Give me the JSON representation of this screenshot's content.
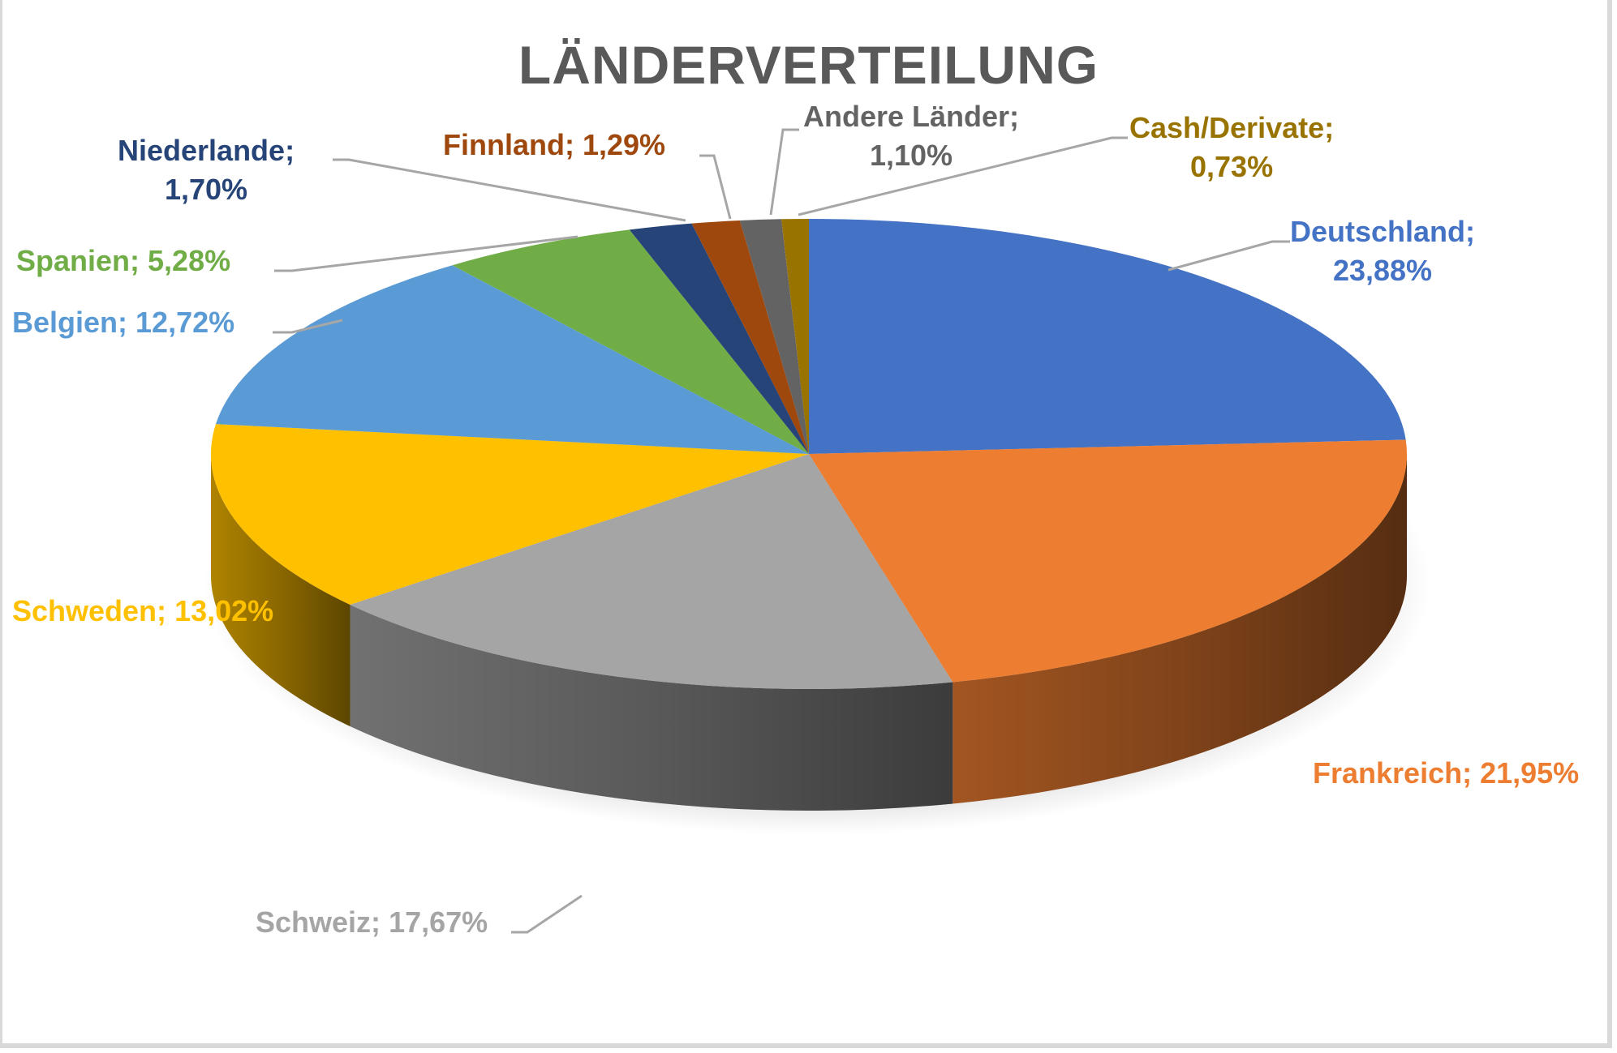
{
  "chart_data": {
    "type": "pie",
    "style": "3d",
    "title": "LÄNDERVERTEILUNG",
    "categories": [
      "Deutschland",
      "Frankreich",
      "Schweiz",
      "Schweden",
      "Belgien",
      "Spanien",
      "Niederlande",
      "Finnland",
      "Andere Länder",
      "Cash/Derivate"
    ],
    "values": [
      23.88,
      21.95,
      17.67,
      13.02,
      12.72,
      5.28,
      1.7,
      1.29,
      1.1,
      0.73
    ],
    "colors": [
      "#4472c4",
      "#ed7d31",
      "#a5a5a5",
      "#ffc000",
      "#5b9bd5",
      "#70ad47",
      "#264478",
      "#9e480e",
      "#636363",
      "#997300"
    ],
    "labels": [
      {
        "name": "Deutschland;",
        "value": "23,88%"
      },
      {
        "name": "Frankreich;",
        "value": "21,95%"
      },
      {
        "name": "Schweiz;",
        "value": "17,67%"
      },
      {
        "name": "Schweden;",
        "value": "13,02%"
      },
      {
        "name": "Belgien;",
        "value": "12,72%"
      },
      {
        "name": "Spanien;",
        "value": "5,28%"
      },
      {
        "name": "Niederlande;",
        "value": "1,70%"
      },
      {
        "name": "Finnland;",
        "value": "1,29%"
      },
      {
        "name": "Andere Länder;",
        "value": "1,10%"
      },
      {
        "name": "Cash/Derivate;",
        "value": "0,73%"
      }
    ],
    "legend": "none (data labels with leader lines)",
    "start_angle": "12 o'clock, clockwise"
  }
}
